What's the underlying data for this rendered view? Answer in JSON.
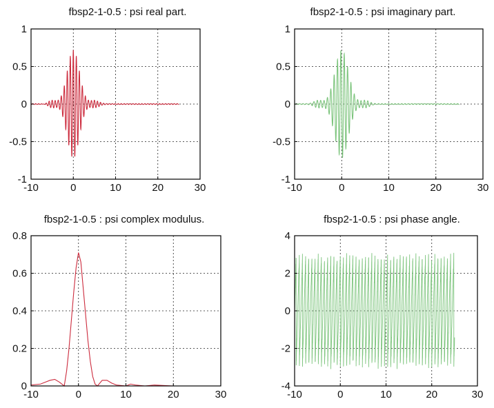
{
  "chart_data": [
    {
      "type": "line",
      "title": "fbsp2-1-0.5 : psi real part.",
      "xlim": [
        -10,
        30
      ],
      "ylim": [
        -1,
        1
      ],
      "xticks": [
        -10,
        0,
        10,
        20,
        30
      ],
      "yticks": [
        -1,
        -0.5,
        0,
        0.5,
        1
      ],
      "xtick_labels": [
        "-10",
        "0",
        "10",
        "20",
        "30"
      ],
      "ytick_labels": [
        "-1",
        "-0.5",
        "0",
        "0.5",
        "1"
      ],
      "grid": true,
      "color": "#cc2a3c",
      "series": [
        {
          "x": [
            -10,
            -8,
            -6,
            -5,
            -4,
            -3,
            -2.5,
            -2,
            -1.5,
            -1,
            -0.5,
            0,
            0.5,
            1,
            1.5,
            2,
            2.5,
            3,
            4,
            5,
            6,
            8,
            10,
            15,
            20,
            25
          ],
          "y": [
            0,
            0.01,
            0.03,
            -0.04,
            0.07,
            -0.12,
            0.18,
            -0.3,
            0.42,
            -0.45,
            0.55,
            -0.6,
            0.7,
            -0.55,
            0.45,
            -0.3,
            0.2,
            -0.1,
            0.05,
            -0.03,
            0.02,
            -0.01,
            0.01,
            0,
            0,
            0
          ]
        }
      ]
    },
    {
      "type": "line",
      "title": "fbsp2-1-0.5 : psi imaginary part.",
      "xlim": [
        -10,
        30
      ],
      "ylim": [
        -1,
        1
      ],
      "xticks": [
        -10,
        0,
        10,
        20,
        30
      ],
      "yticks": [
        -1,
        -0.5,
        0,
        0.5,
        1
      ],
      "xtick_labels": [
        "-10",
        "0",
        "10",
        "20",
        "30"
      ],
      "ytick_labels": [
        "-1",
        "-0.5",
        "0",
        "0.5",
        "1"
      ],
      "grid": true,
      "color": "#7cc47c",
      "series": [
        {
          "x": [
            -10,
            -8,
            -6,
            -5,
            -4,
            -3,
            -2.5,
            -2,
            -1.5,
            -1,
            -0.5,
            0,
            0.5,
            1,
            1.5,
            2,
            2.5,
            3,
            4,
            5,
            6,
            8,
            10,
            15,
            20,
            25
          ],
          "y": [
            0,
            -0.01,
            0.02,
            -0.03,
            0.05,
            -0.08,
            0.15,
            -0.25,
            0.35,
            -0.5,
            0.55,
            -0.65,
            0.65,
            -0.55,
            0.4,
            -0.3,
            0.2,
            -0.1,
            0.05,
            -0.03,
            0.02,
            -0.01,
            0.01,
            0,
            0,
            0
          ]
        }
      ]
    },
    {
      "type": "line",
      "title": "fbsp2-1-0.5 : psi complex modulus.",
      "xlim": [
        -10,
        30
      ],
      "ylim": [
        0,
        0.8
      ],
      "xticks": [
        -10,
        0,
        10,
        20,
        30
      ],
      "yticks": [
        0,
        0.2,
        0.4,
        0.6,
        0.8
      ],
      "xtick_labels": [
        "-10",
        "0",
        "10",
        "20",
        "30"
      ],
      "ytick_labels": [
        "0",
        "0.2",
        "0.4",
        "0.6",
        "0.8"
      ],
      "grid": true,
      "color": "#cc2a3c",
      "series": [
        {
          "x": [
            -10,
            -8,
            -7,
            -6,
            -5,
            -4,
            -3,
            -2.5,
            -2,
            -1.5,
            -1,
            -0.5,
            0,
            0.5,
            1,
            1.5,
            2,
            2.5,
            3,
            3.5,
            4,
            5,
            6,
            7,
            8,
            10,
            11,
            12,
            14,
            16,
            20,
            25
          ],
          "y": [
            0.005,
            0.01,
            0.02,
            0.03,
            0.035,
            0.02,
            0.0,
            0.08,
            0.2,
            0.35,
            0.5,
            0.63,
            0.71,
            0.66,
            0.52,
            0.38,
            0.24,
            0.13,
            0.05,
            0.01,
            0.0,
            0.03,
            0.03,
            0.015,
            0.005,
            0.0,
            0.01,
            0.005,
            0.0,
            0.005,
            0.0,
            0.0
          ]
        }
      ]
    },
    {
      "type": "line",
      "title": "fbsp2-1-0.5 : psi phase angle.",
      "xlim": [
        -10,
        30
      ],
      "ylim": [
        -4,
        4
      ],
      "xticks": [
        -10,
        0,
        10,
        20,
        30
      ],
      "yticks": [
        -4,
        -2,
        0,
        2,
        4
      ],
      "xtick_labels": [
        "-10",
        "0",
        "10",
        "20",
        "30"
      ],
      "ytick_labels": [
        "-4",
        "-2",
        "0",
        "2",
        "4"
      ],
      "grid": true,
      "color": "#7cc47c",
      "series": [
        {
          "x": [
            -10,
            25
          ],
          "y": [
            -3,
            3
          ],
          "pattern": "sawtooth wrapping between -3.1 and 3.1, about 1.4 cycles per unit x"
        }
      ]
    }
  ]
}
